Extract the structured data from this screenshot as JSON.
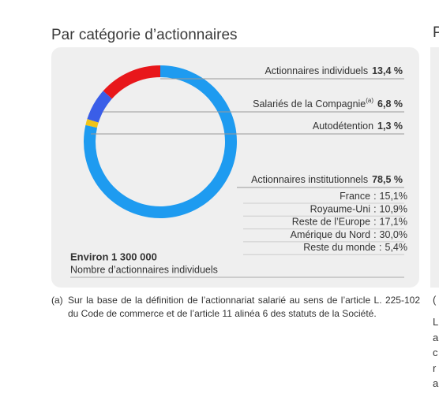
{
  "chart_data": {
    "type": "donut",
    "title": "Par catégorie d’actionnaires",
    "categories": [
      "Actionnaires individuels",
      "Salariés de la Compagnie",
      "Autodétention",
      "Actionnaires institutionnels"
    ],
    "values": [
      13.4,
      6.8,
      1.3,
      78.5
    ],
    "value_labels": [
      "13,4 %",
      "6,8 %",
      "1,3 %",
      "78,5 %"
    ],
    "colors": [
      "#e8171b",
      "#3a5ee8",
      "#f0c419",
      "#1e9bf0"
    ],
    "note_ref": "(a)",
    "breakdown": {
      "separator": ":",
      "categories": [
        "France",
        "Royaume-Uni",
        "Reste de l’Europe",
        "Amérique du Nord",
        "Reste du monde"
      ],
      "values": [
        15.1,
        10.9,
        17.1,
        30.0,
        5.4
      ],
      "value_labels": [
        "15,1%",
        "10,9%",
        "17,1%",
        "30,0%",
        "5,4%"
      ]
    },
    "total": "Environ 1 300 000",
    "total_caption": "Nombre d’actionnaires individuels",
    "footnote": {
      "mark": "(a)",
      "text": "Sur la base de la définition de l’actionnariat salarié au sens de l’article L. 225-102 du Code de commerce et de l’article 11 alinéa 6 des statuts de la Société."
    },
    "right_column": {
      "title": "P",
      "lines": [
        "(",
        "L",
        "a",
        "c",
        "r",
        "a"
      ]
    }
  }
}
